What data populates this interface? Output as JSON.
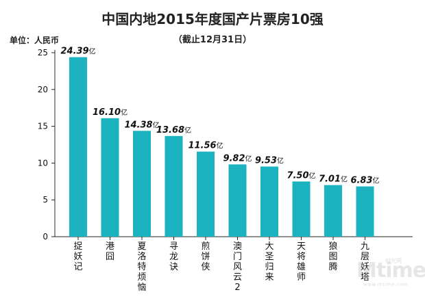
{
  "title": "中国内地2015年度国产片票房10强",
  "subtitle": "（截止12月31日）",
  "unit_label": "单位：人民币",
  "watermark": {
    "logo_text": "Mtime",
    "top_text": "时光网",
    "url_text": "www.mtime.com"
  },
  "colors": {
    "bar": "#1BB3BF",
    "axis": "#222222",
    "text": "#111111"
  },
  "chart_data": {
    "type": "bar",
    "title": "中国内地2015年度国产片票房10强",
    "subtitle": "（截止12月31日）",
    "ylabel": "单位：人民币",
    "ylim": [
      0,
      25
    ],
    "yticks": [
      0,
      5,
      10,
      15,
      20,
      25
    ],
    "value_suffix": "亿",
    "categories": [
      "捉妖记",
      "港囧",
      "夏洛特烦恼",
      "寻龙诀",
      "煎饼侠",
      "澳门风云2",
      "大圣归来",
      "天将雄师",
      "狼图腾",
      "九层妖塔"
    ],
    "values": [
      24.39,
      16.1,
      14.38,
      13.68,
      11.56,
      9.82,
      9.53,
      7.5,
      7.01,
      6.83
    ],
    "value_labels": [
      "24.39",
      "16.10",
      "14.38",
      "13.68",
      "11.56",
      "9.82",
      "9.53",
      "7.50",
      "7.01",
      "6.83"
    ],
    "grid": false,
    "legend": "none"
  }
}
